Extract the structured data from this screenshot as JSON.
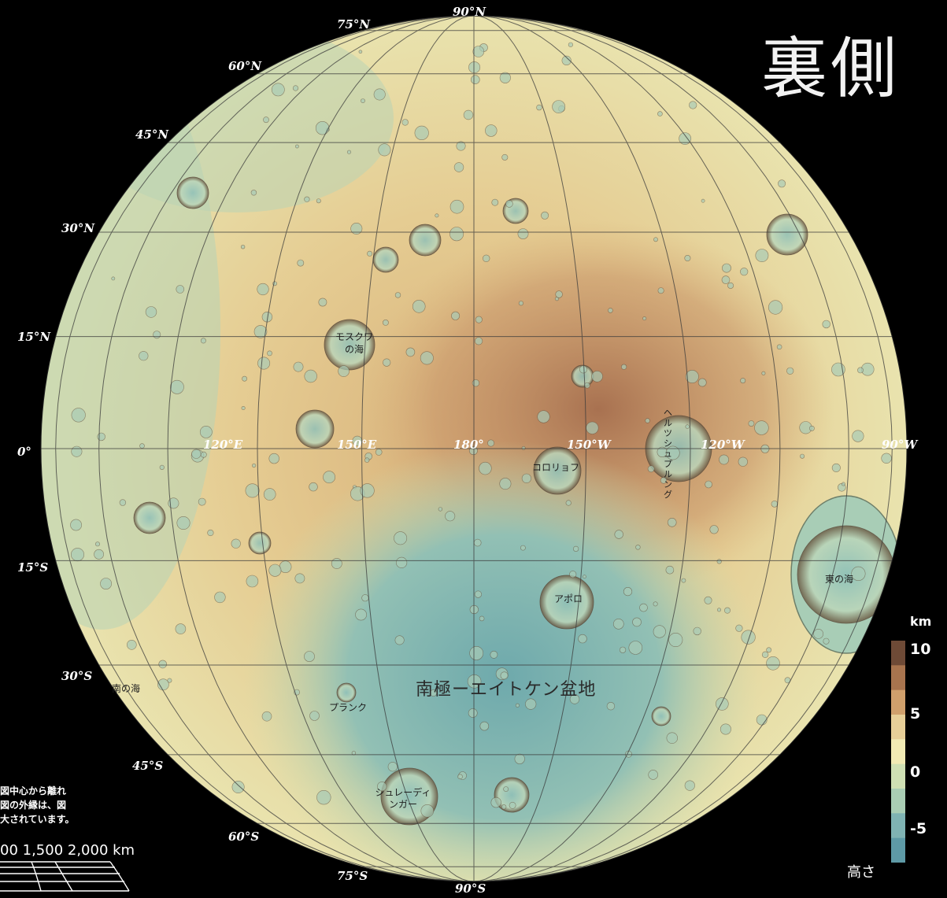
{
  "title": "裏側",
  "latitude_labels": [
    {
      "text": "90°N",
      "key": "n90"
    },
    {
      "text": "75°N",
      "key": "n75"
    },
    {
      "text": "60°N",
      "key": "n60"
    },
    {
      "text": "45°N",
      "key": "n45"
    },
    {
      "text": "30°N",
      "key": "n30"
    },
    {
      "text": "15°N",
      "key": "n15"
    },
    {
      "text": "0°",
      "key": "eq"
    },
    {
      "text": "15°S",
      "key": "s15"
    },
    {
      "text": "30°S",
      "key": "s30"
    },
    {
      "text": "45°S",
      "key": "s45"
    },
    {
      "text": "60°S",
      "key": "s60"
    },
    {
      "text": "75°S",
      "key": "s75"
    },
    {
      "text": "90°S",
      "key": "s90"
    }
  ],
  "longitude_labels": [
    "120°E",
    "150°E",
    "180°",
    "150°W",
    "120°W",
    "90°W"
  ],
  "features": {
    "moscoviense": "モスクワの海",
    "korolev": "コロリョフ",
    "hertzsprung": "ヘルツシュプルング",
    "orientale": "東の海",
    "apollo": "アポロ",
    "spa_basin": "南極ーエイトケン盆地",
    "planck": "プランク",
    "australe": "南の海",
    "schrodinger": "シュレーディンガー"
  },
  "legend": {
    "unit": "km",
    "ticks": [
      "10",
      "5",
      "0",
      "-5"
    ],
    "caption": "高さ",
    "colors": [
      "#6e4a36",
      "#a8744e",
      "#d0a06c",
      "#e7cf98",
      "#f1eab4",
      "#cfe0b4",
      "#a9cdb4",
      "#7fb3b3",
      "#5e9aa6"
    ]
  },
  "scale": {
    "note_lines": [
      "図中心から離れ",
      "図の外縁は、図",
      "大されています。"
    ],
    "labels": "00  1,500  2,000 km"
  }
}
